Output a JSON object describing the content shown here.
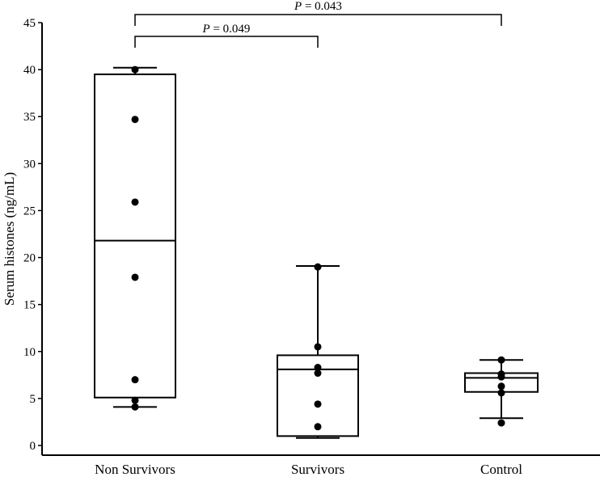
{
  "chart_data": {
    "type": "box",
    "ylabel": "Serum histones (ng/mL)",
    "xlabel": "",
    "ylim": [
      0,
      45
    ],
    "yticks": [
      0,
      5,
      10,
      15,
      20,
      25,
      30,
      35,
      40,
      45
    ],
    "categories": [
      "Non Survivors",
      "Survivors",
      "Control"
    ],
    "boxes": [
      {
        "category": "Non Survivors",
        "whisker_low": 4.1,
        "q1": 5.1,
        "median": 21.8,
        "q3": 39.5,
        "whisker_high": 40.2,
        "points": [
          40.0,
          34.7,
          25.9,
          17.9,
          7.0,
          4.8,
          4.1
        ]
      },
      {
        "category": "Survivors",
        "whisker_low": 0.8,
        "q1": 1.0,
        "median": 8.1,
        "q3": 9.6,
        "whisker_high": 19.1,
        "points": [
          19.0,
          10.5,
          8.3,
          7.7,
          4.4,
          2.0
        ]
      },
      {
        "category": "Control",
        "whisker_low": 2.9,
        "q1": 5.7,
        "median": 7.2,
        "q3": 7.7,
        "whisker_high": 9.1,
        "points": [
          9.1,
          7.6,
          7.3,
          6.3,
          5.6,
          2.4
        ]
      }
    ],
    "annotations": [
      {
        "label_italic": "P",
        "label_rest": " = 0.049",
        "from": "Non Survivors",
        "to": "Survivors"
      },
      {
        "label_italic": "P",
        "label_rest": " = 0.043",
        "from": "Non Survivors",
        "to": "Control"
      }
    ],
    "grid": false,
    "legend": "none"
  }
}
